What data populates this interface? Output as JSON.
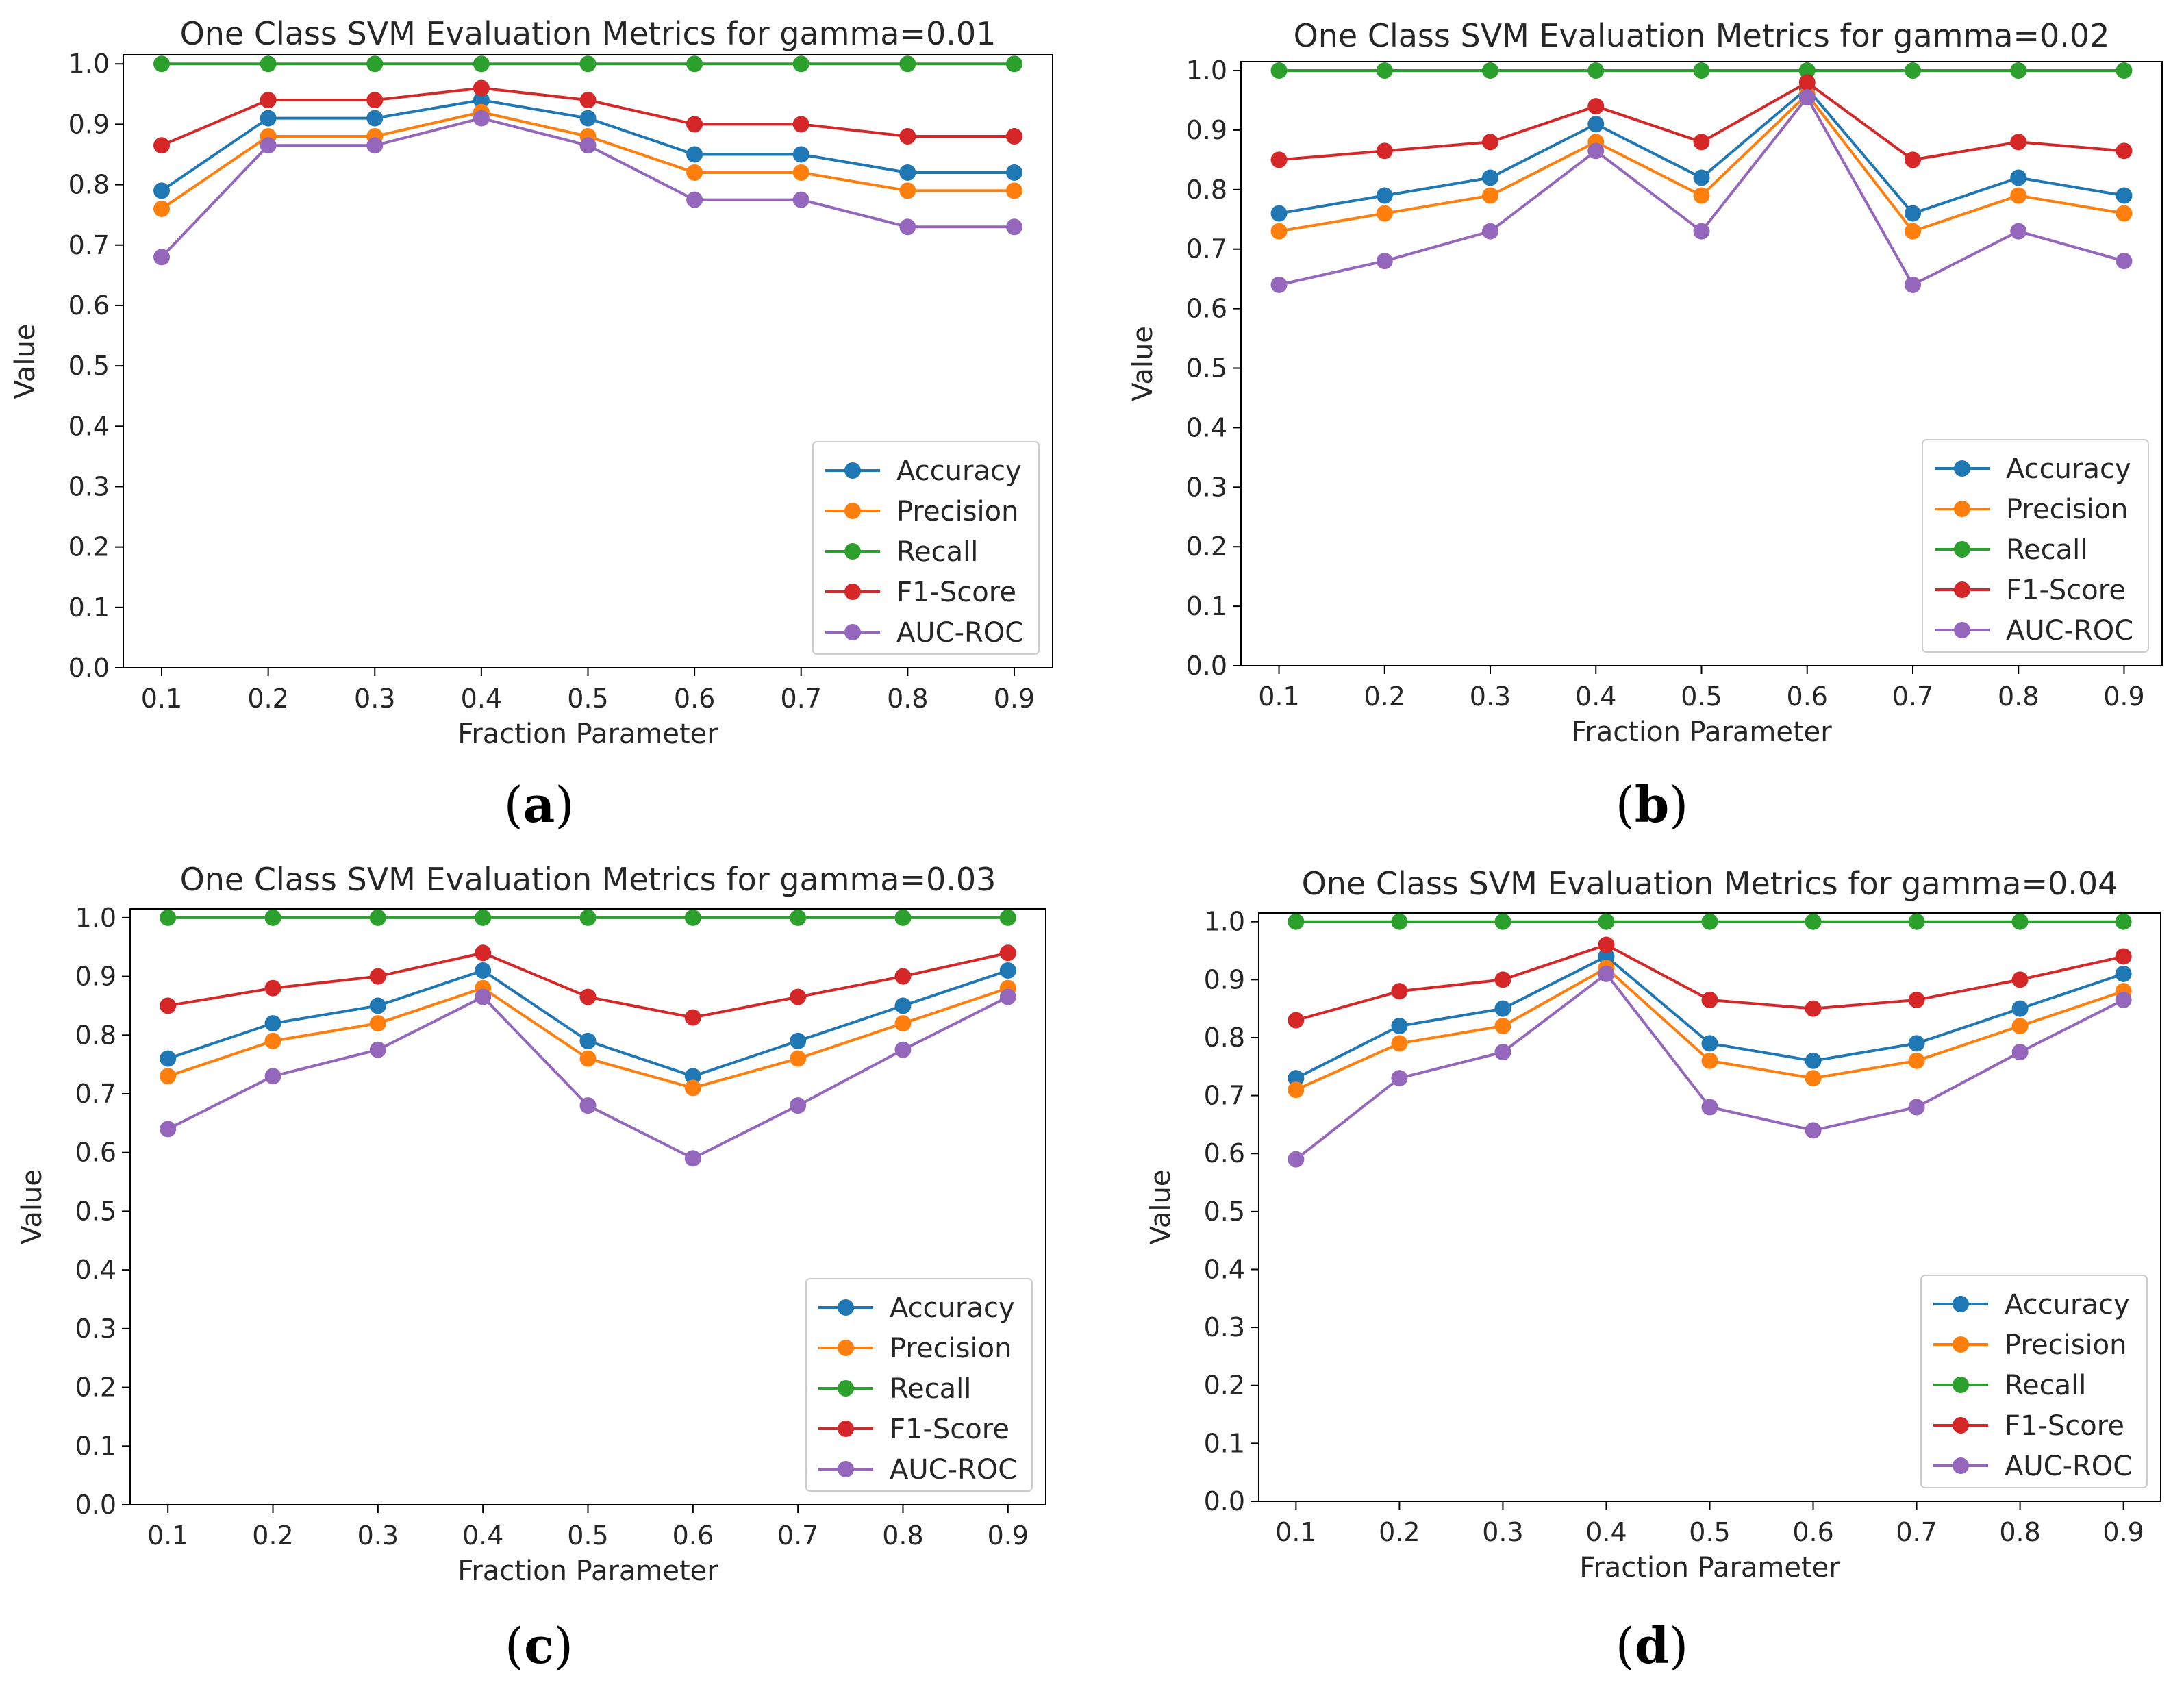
{
  "figure": {
    "colors": {
      "Accuracy": "#1f77b4",
      "Precision": "#ff7f0e",
      "Recall": "#2ca02c",
      "F1-Score": "#d62728",
      "AUC-ROC": "#9467bd"
    }
  },
  "panel_labels": [
    {
      "open": "(",
      "letter": "a",
      "close": ")"
    },
    {
      "open": "(",
      "letter": "b",
      "close": ")"
    },
    {
      "open": "(",
      "letter": "c",
      "close": ")"
    },
    {
      "open": "(",
      "letter": "d",
      "close": ")"
    }
  ],
  "chart_data": [
    {
      "type": "line",
      "title": "One Class SVM Evaluation Metrics for gamma=0.01",
      "xlabel": "Fraction Parameter",
      "ylabel": "Value",
      "x": [
        0.1,
        0.2,
        0.3,
        0.4,
        0.5,
        0.6,
        0.7,
        0.8,
        0.9
      ],
      "x_tick_labels": [
        "0.1",
        "0.2",
        "0.3",
        "0.4",
        "0.5",
        "0.6",
        "0.7",
        "0.8",
        "0.9"
      ],
      "y_tick_labels": [
        "0.0",
        "0.1",
        "0.2",
        "0.3",
        "0.4",
        "0.5",
        "0.6",
        "0.7",
        "0.8",
        "0.9",
        "1.0"
      ],
      "ylim": [
        0,
        1.0
      ],
      "legend_position": "lower-right",
      "series": [
        {
          "name": "Accuracy",
          "values": [
            0.79,
            0.91,
            0.91,
            0.94,
            0.91,
            0.85,
            0.85,
            0.82,
            0.82
          ]
        },
        {
          "name": "Precision",
          "values": [
            0.76,
            0.88,
            0.88,
            0.92,
            0.88,
            0.82,
            0.82,
            0.79,
            0.79
          ]
        },
        {
          "name": "Recall",
          "values": [
            1.0,
            1.0,
            1.0,
            1.0,
            1.0,
            1.0,
            1.0,
            1.0,
            1.0
          ]
        },
        {
          "name": "F1-Score",
          "values": [
            0.865,
            0.94,
            0.94,
            0.96,
            0.94,
            0.9,
            0.9,
            0.88,
            0.88
          ]
        },
        {
          "name": "AUC-ROC",
          "values": [
            0.68,
            0.865,
            0.865,
            0.91,
            0.865,
            0.775,
            0.775,
            0.73,
            0.73
          ]
        }
      ]
    },
    {
      "type": "line",
      "title": "One Class SVM Evaluation Metrics for gamma=0.02",
      "xlabel": "Fraction Parameter",
      "ylabel": "Value",
      "x": [
        0.1,
        0.2,
        0.3,
        0.4,
        0.5,
        0.6,
        0.7,
        0.8,
        0.9
      ],
      "x_tick_labels": [
        "0.1",
        "0.2",
        "0.3",
        "0.4",
        "0.5",
        "0.6",
        "0.7",
        "0.8",
        "0.9"
      ],
      "y_tick_labels": [
        "0.0",
        "0.1",
        "0.2",
        "0.3",
        "0.4",
        "0.5",
        "0.6",
        "0.7",
        "0.8",
        "0.9",
        "1.0"
      ],
      "ylim": [
        0,
        1.0
      ],
      "legend_position": "lower-right",
      "series": [
        {
          "name": "Accuracy",
          "values": [
            0.76,
            0.79,
            0.82,
            0.91,
            0.82,
            0.97,
            0.76,
            0.82,
            0.79
          ]
        },
        {
          "name": "Precision",
          "values": [
            0.73,
            0.76,
            0.79,
            0.88,
            0.79,
            0.96,
            0.73,
            0.79,
            0.76
          ]
        },
        {
          "name": "Recall",
          "values": [
            1.0,
            1.0,
            1.0,
            1.0,
            1.0,
            1.0,
            1.0,
            1.0,
            1.0
          ]
        },
        {
          "name": "F1-Score",
          "values": [
            0.85,
            0.865,
            0.88,
            0.94,
            0.88,
            0.98,
            0.85,
            0.88,
            0.865
          ]
        },
        {
          "name": "AUC-ROC",
          "values": [
            0.64,
            0.68,
            0.73,
            0.865,
            0.73,
            0.955,
            0.64,
            0.73,
            0.68
          ]
        }
      ]
    },
    {
      "type": "line",
      "title": "One Class SVM Evaluation Metrics for gamma=0.03",
      "xlabel": "Fraction Parameter",
      "ylabel": "Value",
      "x": [
        0.1,
        0.2,
        0.3,
        0.4,
        0.5,
        0.6,
        0.7,
        0.8,
        0.9
      ],
      "x_tick_labels": [
        "0.1",
        "0.2",
        "0.3",
        "0.4",
        "0.5",
        "0.6",
        "0.7",
        "0.8",
        "0.9"
      ],
      "y_tick_labels": [
        "0.0",
        "0.1",
        "0.2",
        "0.3",
        "0.4",
        "0.5",
        "0.6",
        "0.7",
        "0.8",
        "0.9",
        "1.0"
      ],
      "ylim": [
        0,
        1.0
      ],
      "legend_position": "lower-right",
      "series": [
        {
          "name": "Accuracy",
          "values": [
            0.76,
            0.82,
            0.85,
            0.91,
            0.79,
            0.73,
            0.79,
            0.85,
            0.91
          ]
        },
        {
          "name": "Precision",
          "values": [
            0.73,
            0.79,
            0.82,
            0.88,
            0.76,
            0.71,
            0.76,
            0.82,
            0.88
          ]
        },
        {
          "name": "Recall",
          "values": [
            1.0,
            1.0,
            1.0,
            1.0,
            1.0,
            1.0,
            1.0,
            1.0,
            1.0
          ]
        },
        {
          "name": "F1-Score",
          "values": [
            0.85,
            0.88,
            0.9,
            0.94,
            0.865,
            0.83,
            0.865,
            0.9,
            0.94
          ]
        },
        {
          "name": "AUC-ROC",
          "values": [
            0.64,
            0.73,
            0.775,
            0.865,
            0.68,
            0.59,
            0.68,
            0.775,
            0.865
          ]
        }
      ]
    },
    {
      "type": "line",
      "title": "One Class SVM Evaluation Metrics for gamma=0.04",
      "xlabel": "Fraction Parameter",
      "ylabel": "Value",
      "x": [
        0.1,
        0.2,
        0.3,
        0.4,
        0.5,
        0.6,
        0.7,
        0.8,
        0.9
      ],
      "x_tick_labels": [
        "0.1",
        "0.2",
        "0.3",
        "0.4",
        "0.5",
        "0.6",
        "0.7",
        "0.8",
        "0.9"
      ],
      "y_tick_labels": [
        "0.0",
        "0.1",
        "0.2",
        "0.3",
        "0.4",
        "0.5",
        "0.6",
        "0.7",
        "0.8",
        "0.9",
        "1.0"
      ],
      "ylim": [
        0,
        1.0
      ],
      "legend_position": "lower-right",
      "series": [
        {
          "name": "Accuracy",
          "values": [
            0.73,
            0.82,
            0.85,
            0.94,
            0.79,
            0.76,
            0.79,
            0.85,
            0.91
          ]
        },
        {
          "name": "Precision",
          "values": [
            0.71,
            0.79,
            0.82,
            0.92,
            0.76,
            0.73,
            0.76,
            0.82,
            0.88
          ]
        },
        {
          "name": "Recall",
          "values": [
            1.0,
            1.0,
            1.0,
            1.0,
            1.0,
            1.0,
            1.0,
            1.0,
            1.0
          ]
        },
        {
          "name": "F1-Score",
          "values": [
            0.83,
            0.88,
            0.9,
            0.96,
            0.865,
            0.85,
            0.865,
            0.9,
            0.94
          ]
        },
        {
          "name": "AUC-ROC",
          "values": [
            0.59,
            0.73,
            0.775,
            0.91,
            0.68,
            0.64,
            0.68,
            0.775,
            0.865
          ]
        }
      ]
    }
  ]
}
